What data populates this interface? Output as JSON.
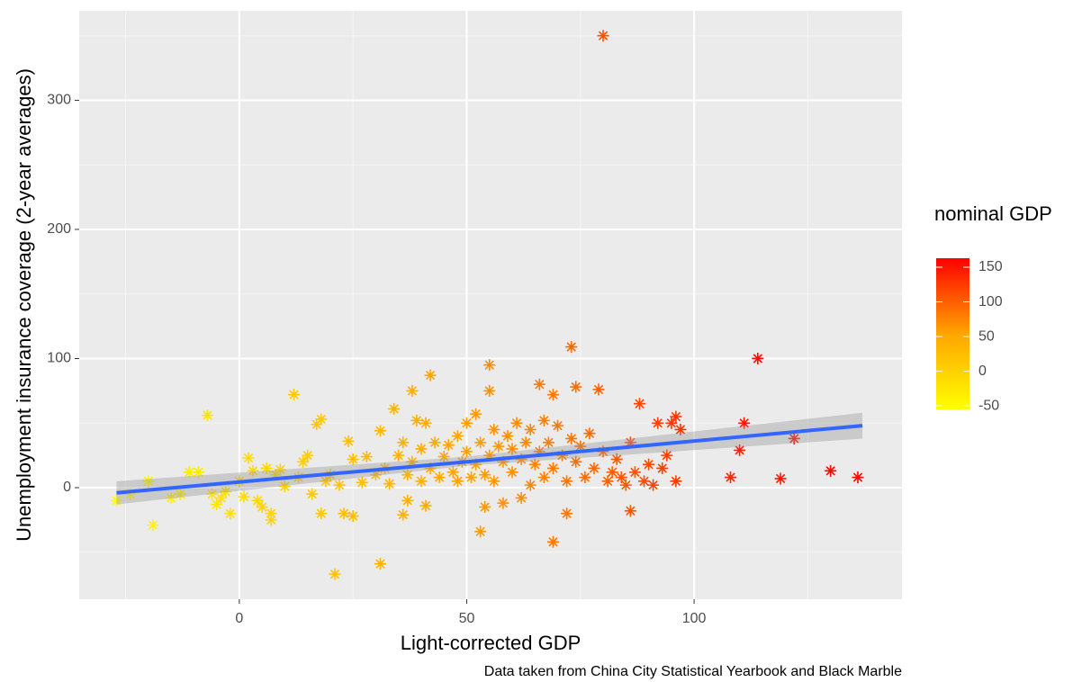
{
  "chart_data": {
    "type": "scatter",
    "x_label": "Light-corrected GDP",
    "y_label": "Unemployment insurance coverage (2-year averages)",
    "caption": "Data taken from China City Statistical Yearbook and Black Marble",
    "xlim": [
      -35.2,
      145.7
    ],
    "ylim": [
      -86.4,
      369.3
    ],
    "xticks": [
      0,
      50,
      100
    ],
    "yticks": [
      0,
      100,
      200,
      300
    ],
    "xminor": [
      -25,
      25,
      75,
      125
    ],
    "yminor": [
      -50,
      50,
      150,
      250,
      350
    ],
    "grid": true,
    "color_legend": {
      "title": "nominal GDP",
      "lim": [
        -55,
        163
      ],
      "ticks": [
        -50,
        0,
        50,
        100,
        150
      ],
      "colors": [
        "#ffff00",
        "#ffa500",
        "#ff0000"
      ]
    },
    "series": [
      {
        "x": [
          -27,
          -24,
          -20,
          -19,
          -15,
          -13,
          -11,
          -9,
          -7,
          -6,
          -5,
          -4,
          -3,
          -2,
          0,
          1,
          2,
          3,
          4,
          5,
          6,
          7,
          7,
          8,
          9,
          10,
          12,
          13,
          14,
          15,
          16,
          17,
          18,
          18,
          19,
          20,
          21,
          22,
          23,
          24,
          25,
          25,
          27,
          28,
          30,
          31,
          31,
          32,
          33,
          34,
          35,
          36,
          36,
          37,
          37,
          38,
          38,
          39,
          40,
          40,
          41,
          41,
          42,
          42,
          43,
          44,
          45,
          46,
          47,
          48,
          48,
          49,
          50,
          50,
          51,
          52,
          52,
          53,
          53,
          54,
          54,
          55,
          55,
          55,
          56,
          56,
          57,
          58,
          58,
          59,
          60,
          60,
          61,
          62,
          62,
          63,
          64,
          64,
          65,
          66,
          66,
          67,
          67,
          68,
          69,
          69,
          69,
          70,
          71,
          72,
          72,
          73,
          73,
          74,
          74,
          75,
          76,
          77,
          78,
          79,
          80,
          80,
          81,
          82,
          83,
          84,
          85,
          86,
          86,
          87,
          88,
          89,
          90,
          91,
          92,
          93,
          94,
          95,
          96,
          96,
          97,
          108,
          110,
          111,
          114,
          119,
          122,
          130,
          136
        ],
        "values": [
          -10,
          -5,
          5,
          -29,
          -8,
          -5,
          12,
          12,
          56,
          -5,
          -13,
          -8,
          -3,
          -20,
          5,
          -7,
          23,
          13,
          -10,
          -15,
          15,
          -20,
          -25,
          10,
          14,
          1,
          72,
          8,
          20,
          25,
          -5,
          49,
          53,
          -20,
          5,
          10,
          -67,
          2,
          -20,
          36,
          -22,
          22,
          4,
          24,
          10,
          -59,
          44,
          15,
          3,
          61,
          25,
          -21,
          35,
          -10,
          10,
          75,
          20,
          52,
          5,
          30,
          -14,
          50,
          87,
          15,
          35,
          8,
          24,
          33,
          12,
          5,
          40,
          20,
          28,
          50,
          8,
          57,
          18,
          -34,
          35,
          -15,
          10,
          95,
          75,
          25,
          45,
          5,
          32,
          -12,
          20,
          40,
          12,
          30,
          50,
          -8,
          22,
          35,
          2,
          45,
          18,
          80,
          28,
          52,
          8,
          35,
          -42,
          72,
          15,
          48,
          25,
          -20,
          5,
          109,
          38,
          78,
          20,
          32,
          8,
          42,
          15,
          76,
          350,
          28,
          5,
          12,
          22,
          8,
          2,
          -18,
          35,
          12,
          65,
          5,
          18,
          2,
          50,
          15,
          25,
          50,
          55,
          5,
          45,
          8,
          29,
          50,
          100,
          7,
          38,
          13,
          8
        ],
        "color_values": [
          -52,
          -48,
          -42,
          -40,
          -37,
          -35,
          -30,
          -28,
          -20,
          -24,
          -22,
          -20,
          -18,
          -18,
          -12,
          -12,
          -10,
          -8,
          -8,
          -5,
          -4,
          -2,
          -3,
          0,
          -1,
          2,
          10,
          4,
          6,
          8,
          10,
          15,
          12,
          12,
          15,
          16,
          20,
          18,
          22,
          22,
          25,
          24,
          26,
          28,
          30,
          35,
          32,
          32,
          34,
          38,
          36,
          38,
          40,
          40,
          38,
          45,
          42,
          44,
          42,
          44,
          46,
          46,
          55,
          46,
          48,
          48,
          50,
          52,
          52,
          54,
          54,
          55,
          56,
          58,
          56,
          62,
          58,
          60,
          60,
          62,
          60,
          70,
          68,
          62,
          64,
          62,
          64,
          66,
          66,
          68,
          68,
          70,
          72,
          70,
          72,
          74,
          74,
          76,
          76,
          82,
          78,
          80,
          78,
          80,
          82,
          84,
          82,
          84,
          84,
          86,
          86,
          95,
          88,
          92,
          90,
          90,
          92,
          94,
          95,
          100,
          110,
          98,
          100,
          102,
          104,
          106,
          106,
          108,
          110,
          110,
          116,
          114,
          116,
          118,
          122,
          122,
          124,
          126,
          128,
          126,
          130,
          140,
          144,
          148,
          156,
          150,
          155,
          160,
          158
        ]
      }
    ],
    "trend": {
      "color": "#3366ff",
      "x": [
        -27,
        50,
        137
      ],
      "values": [
        -4,
        20,
        48
      ],
      "lower": [
        -13,
        17,
        38
      ],
      "upper": [
        5,
        24,
        58
      ]
    }
  }
}
